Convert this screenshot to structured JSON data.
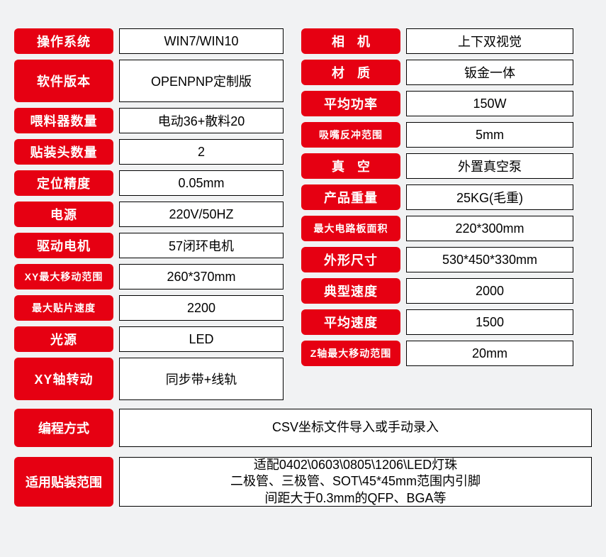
{
  "colors": {
    "label_bg": "#e60012",
    "label_text": "#ffffff",
    "value_bg": "#ffffff",
    "value_text": "#000000",
    "value_border": "#000000",
    "page_bg": "#f1f2f3",
    "label_radius": "6px"
  },
  "left": [
    {
      "label": "操作系统",
      "value": "WIN7/WIN10",
      "tall": false
    },
    {
      "label": "软件版本",
      "value": "OPENPNP定制版",
      "tall": true
    },
    {
      "label": "喂料器数量",
      "value": "电动36+散料20",
      "tall": false
    },
    {
      "label": "贴装头数量",
      "value": "2",
      "tall": false
    },
    {
      "label": "定位精度",
      "value": "0.05mm",
      "tall": false
    },
    {
      "label": "电源",
      "value": "220V/50HZ",
      "tall": false
    },
    {
      "label": "驱动电机",
      "value": "57闭环电机",
      "tall": false
    },
    {
      "label": "XY最大移动范围",
      "value": "260*370mm",
      "tall": false,
      "small": true
    },
    {
      "label": "最大贴片速度",
      "value": "2200",
      "tall": false,
      "small": true
    },
    {
      "label": "光源",
      "value": "LED",
      "tall": false
    },
    {
      "label": "XY轴转动",
      "value": "同步带+线轨",
      "tall": true
    }
  ],
  "right": [
    {
      "label": "相机",
      "value": "上下双视觉",
      "spaced": true
    },
    {
      "label": "材质",
      "value": "钣金一体",
      "spaced": true
    },
    {
      "label": "平均功率",
      "value": "150W"
    },
    {
      "label": "吸嘴反冲范围",
      "value": "5mm",
      "small": true
    },
    {
      "label": "真空",
      "value": "外置真空泵",
      "spaced": true
    },
    {
      "label": "产品重量",
      "value": "25KG(毛重)"
    },
    {
      "label": "最大电路板面积",
      "value": "220*300mm",
      "small": true
    },
    {
      "label": "外形尺寸",
      "value": "530*450*330mm"
    },
    {
      "label": "典型速度",
      "value": "2000"
    },
    {
      "label": "平均速度",
      "value": "1500"
    },
    {
      "label": "Z轴最大移动范围",
      "value": "20mm",
      "small": true
    }
  ],
  "bottom": [
    {
      "label": "编程方式",
      "value": "CSV坐标文件导入或手动录入"
    },
    {
      "label": "适用贴装范围",
      "value": "适配0402\\0603\\0805\\1206\\LED灯珠\n二极管、三极管、SOT\\45*45mm范围内引脚\n间距大于0.3mm的QFP、BGA等",
      "multiline": true
    }
  ]
}
